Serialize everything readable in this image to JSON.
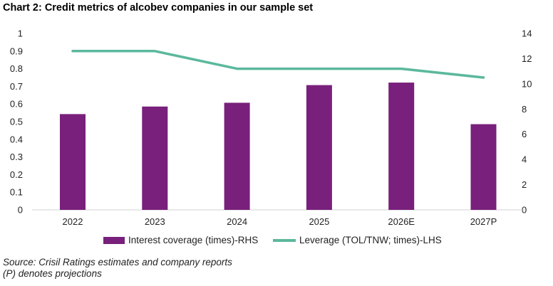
{
  "chart_data": {
    "type": "bar+line",
    "title": "Chart 2: Credit metrics of alcobev companies in our sample set",
    "categories": [
      "2022",
      "2023",
      "2024",
      "2025",
      "2026E",
      "2027P"
    ],
    "series": [
      {
        "name": "Interest coverage (times)-RHS",
        "type": "bar",
        "axis": "right",
        "color": "#78207b",
        "values": [
          7.6,
          8.2,
          8.5,
          9.9,
          10.1,
          6.8
        ]
      },
      {
        "name": "Leverage (TOL/TNW; times)-LHS",
        "type": "line",
        "axis": "left",
        "color": "#5bb89c",
        "values": [
          0.9,
          0.9,
          0.8,
          0.8,
          0.8,
          0.75
        ]
      }
    ],
    "left_axis": {
      "ylim": [
        0,
        1
      ],
      "ticks": [
        "0",
        "0.1",
        "0.2",
        "0.3",
        "0.4",
        "0.5",
        "0.6",
        "0.7",
        "0.8",
        "0.9",
        "1"
      ]
    },
    "right_axis": {
      "ylim": [
        0,
        14
      ],
      "ticks": [
        "0",
        "2",
        "4",
        "6",
        "8",
        "10",
        "12",
        "14"
      ]
    },
    "grid": false,
    "legend": "bottom"
  },
  "notes": {
    "source": "Source: Crisil Ratings estimates and company reports",
    "projection": "(P) denotes projections"
  }
}
